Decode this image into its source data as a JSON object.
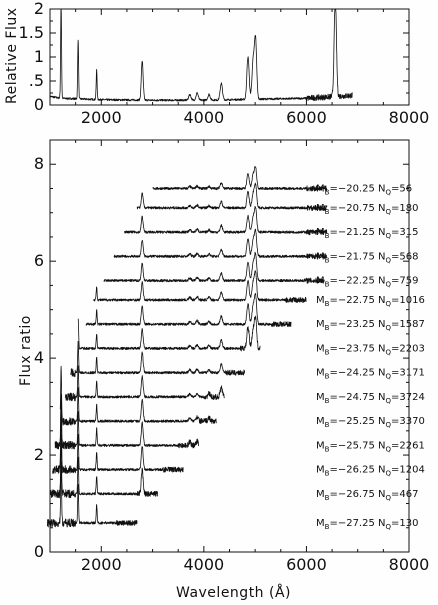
{
  "chart_data": [
    {
      "type": "line",
      "ylabel": "Relative Flux",
      "xlabel": "",
      "xlim": [
        1000,
        8000
      ],
      "ylim": [
        0,
        2
      ],
      "xticks": [
        2000,
        4000,
        6000,
        8000
      ],
      "yticks": [
        0,
        0.5,
        1,
        1.5,
        2
      ],
      "ytick_labels": [
        "0",
        ".5",
        "1",
        "1.5",
        "2"
      ],
      "series": [
        {
          "x_range": [
            1000,
            6900
          ],
          "continuum": [
            [
              1000,
              0.18
            ],
            [
              1200,
              0.14
            ],
            [
              1500,
              0.13
            ],
            [
              2000,
              0.11
            ],
            [
              3000,
              0.1
            ],
            [
              4000,
              0.1
            ],
            [
              5000,
              0.12
            ],
            [
              6000,
              0.14
            ],
            [
              6900,
              0.2
            ]
          ],
          "lines": [
            [
              1216,
              2.0
            ],
            [
              1549,
              1.25
            ],
            [
              1909,
              0.62
            ],
            [
              2798,
              0.82
            ],
            [
              3727,
              0.12
            ],
            [
              3869,
              0.15
            ],
            [
              4101,
              0.12
            ],
            [
              4340,
              0.35
            ],
            [
              4861,
              0.88
            ],
            [
              4959,
              0.75
            ],
            [
              5007,
              1.25
            ],
            [
              6563,
              2.0
            ]
          ]
        }
      ]
    },
    {
      "type": "line",
      "ylabel": "Flux ratio",
      "xlabel": "Wavelength (Å)",
      "xlim": [
        1000,
        8000
      ],
      "ylim": [
        0,
        8.5
      ],
      "xticks": [
        2000,
        4000,
        6000,
        8000
      ],
      "yticks": [
        0,
        2,
        4,
        6,
        8
      ],
      "series": [
        {
          "label_mag": "−20.25",
          "label_n": "56",
          "offset": 7.5,
          "x_range": [
            3000,
            6400
          ]
        },
        {
          "label_mag": "−20.75",
          "label_n": "180",
          "offset": 7.1,
          "x_range": [
            2700,
            6400
          ]
        },
        {
          "label_mag": "−21.25",
          "label_n": "315",
          "offset": 6.6,
          "x_range": [
            2450,
            6400
          ]
        },
        {
          "label_mag": "−21.75",
          "label_n": "568",
          "offset": 6.1,
          "x_range": [
            2250,
            6400
          ]
        },
        {
          "label_mag": "−22.25",
          "label_n": "759",
          "offset": 5.6,
          "x_range": [
            2050,
            6350
          ]
        },
        {
          "label_mag": "−22.75",
          "label_n": "1016",
          "offset": 5.2,
          "x_range": [
            1850,
            6000
          ]
        },
        {
          "label_mag": "−23.25",
          "label_n": "1587",
          "offset": 4.7,
          "x_range": [
            1700,
            5700
          ]
        },
        {
          "label_mag": "−23.75",
          "label_n": "2203",
          "offset": 4.2,
          "x_range": [
            1550,
            5100
          ]
        },
        {
          "label_mag": "−24.25",
          "label_n": "3171",
          "offset": 3.7,
          "x_range": [
            1400,
            4800
          ]
        },
        {
          "label_mag": "−24.75",
          "label_n": "3724",
          "offset": 3.2,
          "x_range": [
            1300,
            4400
          ]
        },
        {
          "label_mag": "−25.25",
          "label_n": "3370",
          "offset": 2.7,
          "x_range": [
            1200,
            4250
          ]
        },
        {
          "label_mag": "−25.75",
          "label_n": "2261",
          "offset": 2.2,
          "x_range": [
            1100,
            3900
          ]
        },
        {
          "label_mag": "−26.25",
          "label_n": "1204",
          "offset": 1.7,
          "x_range": [
            1050,
            3600
          ]
        },
        {
          "label_mag": "−26.75",
          "label_n": "467",
          "offset": 1.2,
          "x_range": [
            1000,
            3100
          ]
        },
        {
          "label_mag": "−27.25",
          "label_n": "130",
          "offset": 0.6,
          "x_range": [
            950,
            2700
          ]
        }
      ]
    }
  ],
  "labels": {
    "top_ylabel": "Relative Flux",
    "bottom_ylabel": "Flux ratio",
    "xlabel": "Wavelength (Å)",
    "mag_symbol": "M",
    "mag_sub": "B",
    "n_symbol": "N",
    "n_sub": "Q"
  }
}
